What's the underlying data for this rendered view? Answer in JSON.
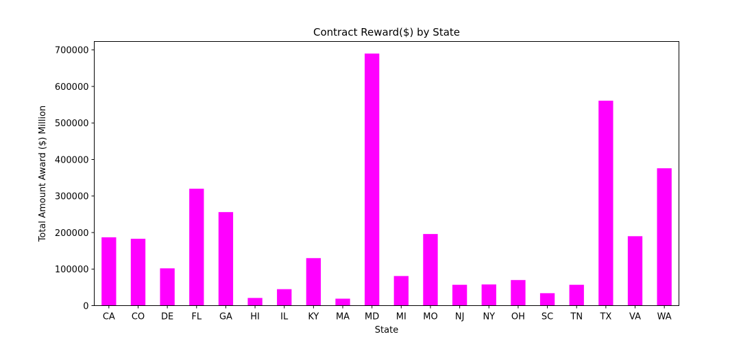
{
  "chart_data": {
    "type": "bar",
    "title": "Contract Reward($) by State",
    "xlabel": "State",
    "ylabel": "Total Amount Award ($) Million",
    "categories": [
      "CA",
      "CO",
      "DE",
      "FL",
      "GA",
      "HI",
      "IL",
      "KY",
      "MA",
      "MD",
      "MI",
      "MO",
      "NJ",
      "NY",
      "OH",
      "SC",
      "TN",
      "TX",
      "VA",
      "WA"
    ],
    "values": [
      187000,
      183000,
      102000,
      320000,
      256000,
      21000,
      45000,
      130000,
      19000,
      690000,
      81000,
      196000,
      57000,
      58000,
      70000,
      34000,
      57000,
      561000,
      190000,
      376000
    ],
    "ylim": [
      0,
      723000
    ],
    "yticks": [
      0,
      100000,
      200000,
      300000,
      400000,
      500000,
      600000,
      700000
    ],
    "bar_color": "#ff00ff",
    "grid": false,
    "legend": false
  }
}
